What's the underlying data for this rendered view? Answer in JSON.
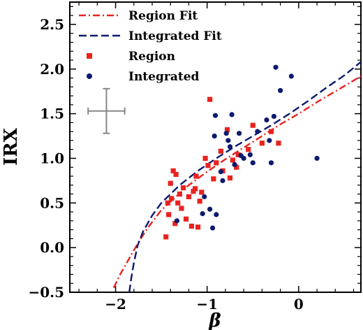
{
  "chart_data": {
    "type": "scatter",
    "xlabel": "β",
    "ylabel": "IRX",
    "xlim": [
      -2.5,
      0.68
    ],
    "ylim": [
      -0.5,
      2.75
    ],
    "x_ticks": [
      -2,
      -1,
      0
    ],
    "x_tick_labels": [
      "−2",
      "−1",
      "0"
    ],
    "y_ticks": [
      -0.5,
      0.0,
      0.5,
      1.0,
      1.5,
      2.0,
      2.5
    ],
    "y_tick_labels": [
      "−0.5",
      "0.0",
      "0.5",
      "1.0",
      "1.5",
      "2.0",
      "2.5"
    ],
    "legend_position": "top-left",
    "grid": false,
    "legend": [
      {
        "label": "Region Fit",
        "kind": "line",
        "style": "dashdot",
        "color": "#e8231f"
      },
      {
        "label": "Integrated Fit",
        "kind": "line",
        "style": "dashed",
        "color": "#0b1a6e"
      },
      {
        "label": "Region",
        "kind": "marker",
        "marker": "square",
        "color": "#e8231f"
      },
      {
        "label": "Integrated",
        "kind": "marker",
        "marker": "circle",
        "color": "#0b1a6e"
      }
    ],
    "fits": [
      {
        "name": "Region Fit",
        "color": "#e8231f",
        "dash": "10 4 2 4",
        "points": [
          [
            -2.02,
            -0.45
          ],
          [
            -1.95,
            -0.3
          ],
          [
            -1.85,
            -0.12
          ],
          [
            -1.75,
            0.06
          ],
          [
            -1.65,
            0.22
          ],
          [
            -1.5,
            0.42
          ],
          [
            -1.35,
            0.56
          ],
          [
            -1.2,
            0.7
          ],
          [
            -1.0,
            0.85
          ],
          [
            -0.8,
            0.99
          ],
          [
            -0.6,
            1.12
          ],
          [
            -0.4,
            1.25
          ],
          [
            -0.2,
            1.38
          ],
          [
            0.0,
            1.5
          ],
          [
            0.2,
            1.63
          ],
          [
            0.4,
            1.75
          ],
          [
            0.68,
            1.92
          ]
        ]
      },
      {
        "name": "Integrated Fit",
        "color": "#0b1a6e",
        "dash": "11 5",
        "points": [
          [
            -1.85,
            -0.5
          ],
          [
            -1.83,
            -0.35
          ],
          [
            -1.8,
            -0.17
          ],
          [
            -1.76,
            0.02
          ],
          [
            -1.7,
            0.18
          ],
          [
            -1.6,
            0.36
          ],
          [
            -1.5,
            0.5
          ],
          [
            -1.3,
            0.7
          ],
          [
            -1.1,
            0.86
          ],
          [
            -0.9,
            1.0
          ],
          [
            -0.7,
            1.13
          ],
          [
            -0.5,
            1.25
          ],
          [
            -0.3,
            1.37
          ],
          [
            -0.1,
            1.5
          ],
          [
            0.1,
            1.64
          ],
          [
            0.3,
            1.79
          ],
          [
            0.5,
            1.93
          ],
          [
            0.68,
            2.08
          ]
        ]
      }
    ],
    "series": [
      {
        "name": "Region",
        "marker": "square",
        "color": "#e8231f",
        "points": [
          [
            -1.45,
            0.12
          ],
          [
            -1.43,
            0.5
          ],
          [
            -1.42,
            0.37
          ],
          [
            -1.4,
            0.72
          ],
          [
            -1.39,
            0.55
          ],
          [
            -1.37,
            0.86
          ],
          [
            -1.35,
            0.27
          ],
          [
            -1.34,
            0.82
          ],
          [
            -1.32,
            0.5
          ],
          [
            -1.3,
            0.6
          ],
          [
            -1.28,
            0.44
          ],
          [
            -1.26,
            0.67
          ],
          [
            -1.23,
            0.32
          ],
          [
            -1.2,
            0.57
          ],
          [
            -1.17,
            0.24
          ],
          [
            -1.15,
            0.63
          ],
          [
            -1.13,
            0.66
          ],
          [
            -1.12,
            0.8
          ],
          [
            -1.1,
            0.23
          ],
          [
            -1.08,
            0.52
          ],
          [
            -1.06,
            0.62
          ],
          [
            -1.02,
            1.0
          ],
          [
            -0.99,
            0.92
          ],
          [
            -0.97,
            1.66
          ],
          [
            -0.93,
            0.77
          ],
          [
            -0.9,
            0.95
          ],
          [
            -0.85,
            1.08
          ],
          [
            -0.83,
            0.86
          ],
          [
            -0.78,
            1.32
          ],
          [
            -0.75,
            0.78
          ],
          [
            -0.72,
            0.98
          ],
          [
            -0.68,
            0.9
          ],
          [
            -0.66,
            1.04
          ],
          [
            -0.55,
            1.1
          ],
          [
            -0.5,
            1.37
          ],
          [
            -0.4,
            1.17
          ],
          [
            -0.3,
            1.3
          ],
          [
            -0.22,
            1.17
          ]
        ]
      },
      {
        "name": "Integrated",
        "marker": "circle",
        "color": "#0b1a6e",
        "points": [
          [
            -1.33,
            0.3
          ],
          [
            -1.05,
            0.38
          ],
          [
            -1.03,
            0.57
          ],
          [
            -0.97,
            0.43
          ],
          [
            -0.94,
            0.22
          ],
          [
            -0.92,
            1.25
          ],
          [
            -0.91,
            1.48
          ],
          [
            -0.9,
            0.37
          ],
          [
            -0.85,
            0.85
          ],
          [
            -0.83,
            0.75
          ],
          [
            -0.79,
            1.28
          ],
          [
            -0.77,
            1.2
          ],
          [
            -0.75,
            1.13
          ],
          [
            -0.73,
            1.49
          ],
          [
            -0.7,
            0.93
          ],
          [
            -0.65,
            1.28
          ],
          [
            -0.63,
            1.03
          ],
          [
            -0.6,
            1.0
          ],
          [
            -0.53,
            1.04
          ],
          [
            -0.5,
            0.95
          ],
          [
            -0.45,
            1.3
          ],
          [
            -0.35,
            1.43
          ],
          [
            -0.32,
            1.2
          ],
          [
            -0.3,
            0.95
          ],
          [
            -0.27,
            1.47
          ],
          [
            -0.25,
            2.02
          ],
          [
            -0.2,
            1.76
          ],
          [
            -0.08,
            1.92
          ],
          [
            0.2,
            1.0
          ]
        ]
      }
    ],
    "error_bar": {
      "x": -2.1,
      "y": 1.53,
      "xerr": 0.2,
      "yerr": 0.25,
      "color": "#888888"
    }
  }
}
